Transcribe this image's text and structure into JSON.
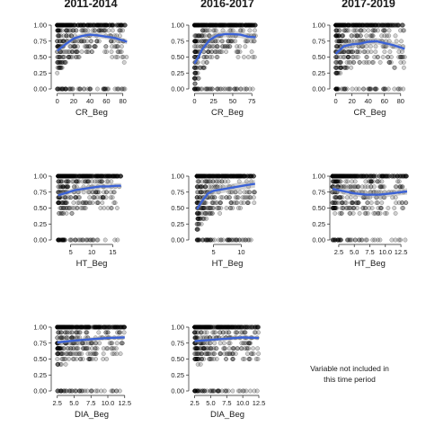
{
  "figure": {
    "column_titles": [
      "2011-2014",
      "2016-2017",
      "2017-2019"
    ],
    "missing_note": [
      "Variable not included in",
      "this time period"
    ],
    "colors": {
      "smooth_line": "#3b62d6",
      "confidence_band": "#9a9a9a",
      "points": "#000000"
    }
  },
  "chart_data": [
    {
      "type": "scatter",
      "period": "2011-2014",
      "xlabel": "CR_Beg",
      "xlim": [
        -4,
        88
      ],
      "ylim": [
        0,
        1
      ],
      "xticks": [
        0,
        20,
        40,
        60,
        80
      ],
      "yticks": [
        0.0,
        0.25,
        0.5,
        0.75,
        1.0
      ],
      "trend": [
        [
          0,
          0.6
        ],
        [
          10,
          0.7
        ],
        [
          20,
          0.79
        ],
        [
          30,
          0.83
        ],
        [
          40,
          0.85
        ],
        [
          50,
          0.84
        ],
        [
          60,
          0.82
        ],
        [
          70,
          0.8
        ],
        [
          80,
          0.76
        ],
        [
          85,
          0.74
        ]
      ],
      "trend_se": 0.04
    },
    {
      "type": "scatter",
      "period": "2016-2017",
      "xlabel": "CR_Beg",
      "xlim": [
        -4,
        90
      ],
      "ylim": [
        0,
        1
      ],
      "xticks": [
        0,
        25,
        50,
        75
      ],
      "yticks": [
        0.0,
        0.25,
        0.5,
        0.75,
        1.0
      ],
      "trend": [
        [
          0,
          0.4
        ],
        [
          5,
          0.5
        ],
        [
          10,
          0.62
        ],
        [
          20,
          0.77
        ],
        [
          30,
          0.84
        ],
        [
          40,
          0.86
        ],
        [
          50,
          0.86
        ],
        [
          60,
          0.85
        ],
        [
          70,
          0.82
        ],
        [
          80,
          0.81
        ]
      ],
      "trend_se": 0.05
    },
    {
      "type": "scatter",
      "period": "2017-2019",
      "xlabel": "CR_Beg",
      "xlim": [
        -4,
        88
      ],
      "ylim": [
        0,
        1
      ],
      "xticks": [
        0,
        20,
        40,
        60,
        80
      ],
      "yticks": [
        0.0,
        0.25,
        0.5,
        0.75,
        1.0
      ],
      "trend": [
        [
          0,
          0.55
        ],
        [
          10,
          0.67
        ],
        [
          20,
          0.7
        ],
        [
          30,
          0.71
        ],
        [
          40,
          0.74
        ],
        [
          50,
          0.75
        ],
        [
          60,
          0.72
        ],
        [
          70,
          0.69
        ],
        [
          80,
          0.65
        ],
        [
          85,
          0.63
        ]
      ],
      "trend_se": 0.05
    },
    {
      "type": "scatter",
      "period": "2011-2014",
      "xlabel": "HT_Beg",
      "xlim": [
        1,
        19
      ],
      "ylim": [
        0,
        1
      ],
      "xticks": [
        5,
        10,
        15
      ],
      "yticks": [
        0.0,
        0.25,
        0.5,
        0.75,
        1.0
      ],
      "trend": [
        [
          2,
          0.7
        ],
        [
          4,
          0.74
        ],
        [
          6,
          0.78
        ],
        [
          8,
          0.8
        ],
        [
          10,
          0.82
        ],
        [
          12,
          0.84
        ],
        [
          14,
          0.84
        ],
        [
          16,
          0.85
        ],
        [
          17,
          0.85
        ]
      ],
      "trend_se": 0.04
    },
    {
      "type": "scatter",
      "period": "2016-2017",
      "xlabel": "HT_Beg",
      "xlim": [
        1,
        14
      ],
      "ylim": [
        0,
        1
      ],
      "xticks": [
        5,
        10
      ],
      "yticks": [
        0.0,
        0.25,
        0.5,
        0.75,
        1.0
      ],
      "trend": [
        [
          2,
          0.48
        ],
        [
          3,
          0.62
        ],
        [
          4,
          0.73
        ],
        [
          5,
          0.77
        ],
        [
          7,
          0.8
        ],
        [
          9,
          0.83
        ],
        [
          11,
          0.86
        ],
        [
          12.5,
          0.88
        ]
      ],
      "trend_se": 0.06
    },
    {
      "type": "scatter",
      "period": "2017-2019",
      "xlabel": "HT_Beg",
      "xlim": [
        1.5,
        13.5
      ],
      "ylim": [
        0,
        1
      ],
      "xticks": [
        2.5,
        5.0,
        7.5,
        10.0,
        12.5
      ],
      "yticks": [
        0.0,
        0.25,
        0.5,
        0.75,
        1.0
      ],
      "trend": [
        [
          1.5,
          0.8
        ],
        [
          3,
          0.77
        ],
        [
          5,
          0.73
        ],
        [
          7,
          0.71
        ],
        [
          9,
          0.71
        ],
        [
          11,
          0.73
        ],
        [
          12.5,
          0.75
        ],
        [
          13.5,
          0.76
        ]
      ],
      "trend_se": 0.05
    },
    {
      "type": "scatter",
      "period": "2011-2014",
      "xlabel": "DIA_Beg",
      "xlim": [
        2,
        13.2
      ],
      "ylim": [
        0,
        1
      ],
      "xticks": [
        2.5,
        5.0,
        7.5,
        10.0,
        12.5
      ],
      "yticks": [
        0.0,
        0.25,
        0.5,
        0.75,
        1.0
      ],
      "trend": [
        [
          2.5,
          0.76
        ],
        [
          5,
          0.79
        ],
        [
          7.5,
          0.81
        ],
        [
          10,
          0.83
        ],
        [
          12.5,
          0.84
        ]
      ],
      "trend_se": 0.03
    },
    {
      "type": "scatter",
      "period": "2016-2017",
      "xlabel": "DIA_Beg",
      "xlim": [
        2,
        13.2
      ],
      "ylim": [
        0,
        1
      ],
      "xticks": [
        2.5,
        5.0,
        7.5,
        10.0,
        12.5
      ],
      "yticks": [
        0.0,
        0.25,
        0.5,
        0.75,
        1.0
      ],
      "trend": [
        [
          2.5,
          0.78
        ],
        [
          5,
          0.8
        ],
        [
          7.5,
          0.82
        ],
        [
          10,
          0.84
        ],
        [
          12.5,
          0.83
        ]
      ],
      "trend_se": 0.03
    }
  ]
}
